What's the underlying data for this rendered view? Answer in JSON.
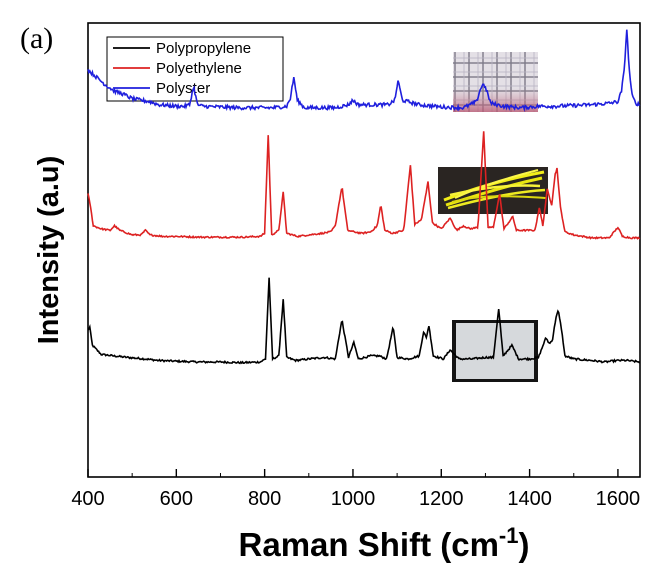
{
  "panel_label": "(a)",
  "chart_data": {
    "type": "line",
    "xlabel": "Raman Shift (cm",
    "xlabel_superscript": "-1",
    "xlabel_suffix": ")",
    "ylabel": "Intensity (a.u)",
    "xlim": [
      400,
      1650
    ],
    "x_ticks": [
      400,
      600,
      800,
      1000,
      1200,
      1400,
      1600
    ],
    "y_ticks_shown": false,
    "grid": false,
    "legend_position": "top-left",
    "series": [
      {
        "name": "Polypropylene",
        "color": "#000000",
        "noise": 0.6,
        "points": [
          [
            400,
            97
          ],
          [
            404,
            99
          ],
          [
            410,
            87
          ],
          [
            430,
            81
          ],
          [
            460,
            80
          ],
          [
            490,
            79
          ],
          [
            530,
            78
          ],
          [
            560,
            77
          ],
          [
            600,
            76.5
          ],
          [
            650,
            76
          ],
          [
            700,
            76
          ],
          [
            750,
            75.5
          ],
          [
            790,
            76
          ],
          [
            802,
            78
          ],
          [
            810,
            132
          ],
          [
            818,
            78
          ],
          [
            832,
            80
          ],
          [
            842,
            117
          ],
          [
            850,
            79
          ],
          [
            870,
            77
          ],
          [
            900,
            78
          ],
          [
            935,
            79
          ],
          [
            960,
            78
          ],
          [
            975,
            104
          ],
          [
            990,
            79
          ],
          [
            1002,
            89
          ],
          [
            1012,
            78
          ],
          [
            1040,
            80
          ],
          [
            1060,
            80
          ],
          [
            1076,
            78
          ],
          [
            1091,
            99
          ],
          [
            1100,
            79
          ],
          [
            1125,
            78
          ],
          [
            1150,
            80
          ],
          [
            1160,
            96
          ],
          [
            1166,
            92
          ],
          [
            1172,
            100
          ],
          [
            1182,
            80
          ],
          [
            1205,
            78
          ],
          [
            1220,
            84
          ],
          [
            1240,
            78
          ],
          [
            1270,
            78
          ],
          [
            1300,
            79
          ],
          [
            1318,
            79
          ],
          [
            1330,
            111
          ],
          [
            1340,
            80
          ],
          [
            1360,
            87
          ],
          [
            1375,
            78
          ],
          [
            1400,
            78
          ],
          [
            1420,
            79
          ],
          [
            1437,
            92
          ],
          [
            1445,
            88
          ],
          [
            1452,
            91
          ],
          [
            1460,
            106
          ],
          [
            1465,
            110
          ],
          [
            1472,
            98
          ],
          [
            1480,
            80
          ],
          [
            1500,
            78
          ],
          [
            1540,
            77
          ],
          [
            1570,
            76
          ],
          [
            1600,
            77
          ],
          [
            1620,
            77
          ],
          [
            1650,
            76
          ]
        ]
      },
      {
        "name": "Polyethylene",
        "color": "#dd2222",
        "noise": 0.5,
        "points": [
          [
            400,
            187
          ],
          [
            405,
            180
          ],
          [
            412,
            166
          ],
          [
            430,
            164
          ],
          [
            450,
            163
          ],
          [
            460,
            166
          ],
          [
            472,
            163
          ],
          [
            500,
            160
          ],
          [
            520,
            160
          ],
          [
            530,
            163
          ],
          [
            540,
            160
          ],
          [
            570,
            159
          ],
          [
            600,
            159
          ],
          [
            650,
            158.5
          ],
          [
            700,
            158.5
          ],
          [
            750,
            158.5
          ],
          [
            790,
            159
          ],
          [
            800,
            161
          ],
          [
            808,
            226
          ],
          [
            816,
            160
          ],
          [
            832,
            163
          ],
          [
            842,
            188
          ],
          [
            850,
            161
          ],
          [
            875,
            159
          ],
          [
            900,
            160
          ],
          [
            930,
            161
          ],
          [
            950,
            162
          ],
          [
            960,
            166
          ],
          [
            975,
            192
          ],
          [
            988,
            163
          ],
          [
            1002,
            162
          ],
          [
            1020,
            161
          ],
          [
            1040,
            162
          ],
          [
            1055,
            166
          ],
          [
            1063,
            180
          ],
          [
            1072,
            163
          ],
          [
            1090,
            161
          ],
          [
            1115,
            163
          ],
          [
            1130,
            206
          ],
          [
            1140,
            167
          ],
          [
            1155,
            170
          ],
          [
            1170,
            195
          ],
          [
            1180,
            168
          ],
          [
            1200,
            164
          ],
          [
            1220,
            171
          ],
          [
            1235,
            163
          ],
          [
            1250,
            166
          ],
          [
            1265,
            164
          ],
          [
            1283,
            165
          ],
          [
            1296,
            228
          ],
          [
            1306,
            165
          ],
          [
            1318,
            165
          ],
          [
            1332,
            187
          ],
          [
            1342,
            164
          ],
          [
            1362,
            172
          ],
          [
            1370,
            163
          ],
          [
            1395,
            163
          ],
          [
            1412,
            163
          ],
          [
            1422,
            178
          ],
          [
            1430,
            166
          ],
          [
            1440,
            190
          ],
          [
            1450,
            180
          ],
          [
            1458,
            200
          ],
          [
            1462,
            204
          ],
          [
            1470,
            178
          ],
          [
            1480,
            162
          ],
          [
            1500,
            160
          ],
          [
            1540,
            158
          ],
          [
            1580,
            158
          ],
          [
            1600,
            165
          ],
          [
            1610,
            159
          ],
          [
            1630,
            158
          ],
          [
            1650,
            158
          ]
        ]
      },
      {
        "name": "Polyster",
        "color": "#1f1fdd",
        "noise": 1.2,
        "points": [
          [
            400,
            269
          ],
          [
            420,
            264
          ],
          [
            440,
            259
          ],
          [
            460,
            255
          ],
          [
            480,
            253
          ],
          [
            500,
            250
          ],
          [
            520,
            249
          ],
          [
            540,
            248
          ],
          [
            560,
            246
          ],
          [
            580,
            245.5
          ],
          [
            600,
            245
          ],
          [
            620,
            245
          ],
          [
            630,
            246
          ],
          [
            639,
            258
          ],
          [
            648,
            246
          ],
          [
            660,
            245
          ],
          [
            700,
            244.5
          ],
          [
            740,
            244
          ],
          [
            780,
            244
          ],
          [
            820,
            244
          ],
          [
            850,
            245
          ],
          [
            858,
            250
          ],
          [
            866,
            264
          ],
          [
            874,
            249
          ],
          [
            890,
            244
          ],
          [
            930,
            244
          ],
          [
            960,
            244
          ],
          [
            990,
            246
          ],
          [
            1000,
            249
          ],
          [
            1012,
            246
          ],
          [
            1040,
            246
          ],
          [
            1080,
            246
          ],
          [
            1095,
            249
          ],
          [
            1102,
            262
          ],
          [
            1112,
            249
          ],
          [
            1150,
            246
          ],
          [
            1200,
            244.5
          ],
          [
            1250,
            244
          ],
          [
            1280,
            248
          ],
          [
            1288,
            256
          ],
          [
            1296,
            260
          ],
          [
            1304,
            254
          ],
          [
            1312,
            247
          ],
          [
            1340,
            245
          ],
          [
            1380,
            244
          ],
          [
            1420,
            245
          ],
          [
            1460,
            245
          ],
          [
            1500,
            245.5
          ],
          [
            1540,
            246
          ],
          [
            1580,
            247
          ],
          [
            1600,
            248
          ],
          [
            1608,
            255
          ],
          [
            1614,
            268
          ],
          [
            1620,
            296
          ],
          [
            1626,
            268
          ],
          [
            1632,
            252
          ],
          [
            1640,
            247
          ],
          [
            1650,
            246
          ]
        ]
      }
    ]
  }
}
